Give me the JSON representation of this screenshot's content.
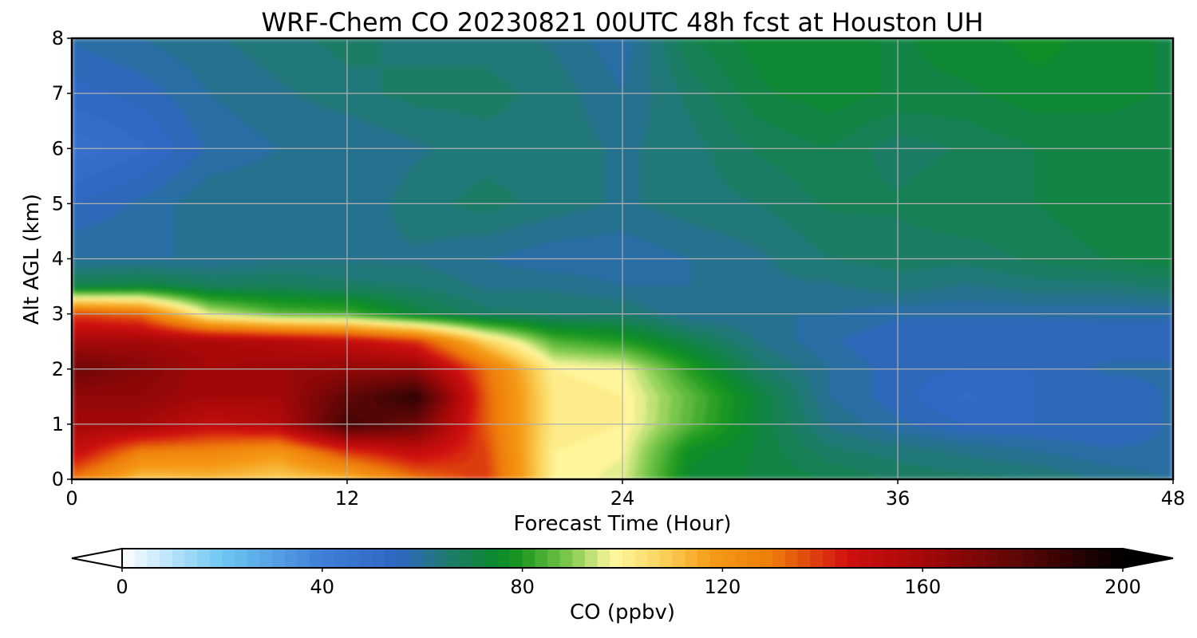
{
  "chart_data": {
    "type": "heatmap",
    "title": "WRF-Chem CO  20230821 00UTC 48h fcst at Houston UH",
    "xlabel": "Forecast Time (Hour)",
    "ylabel": "Alt AGL (km)",
    "xlim": [
      0,
      48
    ],
    "ylim": [
      0,
      8
    ],
    "x_ticks": [
      0,
      12,
      24,
      36,
      48
    ],
    "y_ticks": [
      0,
      1,
      2,
      3,
      4,
      5,
      6,
      7,
      8
    ],
    "grid": true,
    "x": [
      0,
      3,
      6,
      9,
      12,
      15,
      18,
      21,
      24,
      27,
      30,
      33,
      36,
      39,
      42,
      45,
      48
    ],
    "y": [
      0,
      0.5,
      1,
      1.5,
      2,
      2.5,
      3,
      3.5,
      4,
      5,
      6,
      7,
      8
    ],
    "z": [
      [
        130,
        110,
        112,
        108,
        112,
        130,
        140,
        100,
        96,
        74,
        72,
        70,
        67,
        66,
        65,
        62,
        60
      ],
      [
        150,
        128,
        126,
        120,
        140,
        150,
        138,
        100,
        98,
        76,
        72,
        66,
        64,
        62,
        60,
        58,
        58
      ],
      [
        160,
        160,
        150,
        155,
        185,
        175,
        135,
        102,
        100,
        85,
        72,
        62,
        58,
        55,
        55,
        55,
        58
      ],
      [
        165,
        165,
        160,
        160,
        178,
        190,
        135,
        102,
        100,
        86,
        72,
        60,
        56,
        52,
        55,
        55,
        58
      ],
      [
        175,
        168,
        160,
        162,
        165,
        165,
        132,
        100,
        98,
        80,
        66,
        60,
        56,
        55,
        55,
        58,
        58
      ],
      [
        160,
        160,
        158,
        155,
        150,
        140,
        108,
        85,
        80,
        70,
        62,
        58,
        55,
        55,
        55,
        56,
        56
      ],
      [
        138,
        132,
        96,
        86,
        84,
        72,
        66,
        65,
        65,
        60,
        60,
        60,
        58,
        58,
        58,
        58,
        58
      ],
      [
        70,
        72,
        68,
        68,
        66,
        65,
        62,
        62,
        60,
        60,
        62,
        62,
        64,
        62,
        64,
        64,
        66
      ],
      [
        60,
        60,
        60,
        62,
        62,
        62,
        60,
        58,
        58,
        60,
        62,
        65,
        66,
        66,
        68,
        70,
        72
      ],
      [
        55,
        58,
        62,
        62,
        60,
        64,
        66,
        64,
        62,
        64,
        65,
        68,
        68,
        70,
        70,
        72,
        70
      ],
      [
        48,
        52,
        58,
        60,
        60,
        62,
        64,
        64,
        62,
        64,
        68,
        70,
        66,
        68,
        70,
        70,
        70
      ],
      [
        54,
        56,
        60,
        62,
        64,
        66,
        66,
        64,
        60,
        66,
        72,
        74,
        72,
        72,
        74,
        74,
        72
      ],
      [
        58,
        60,
        62,
        64,
        66,
        64,
        64,
        62,
        58,
        70,
        74,
        74,
        72,
        74,
        76,
        74,
        72
      ]
    ],
    "colorbar": {
      "label": "CO  (ppbv)",
      "min": 0,
      "max": 200,
      "ticks": [
        0,
        40,
        80,
        120,
        160,
        200
      ],
      "extend": "both",
      "colors": [
        [
          0,
          "#ffffff"
        ],
        [
          20,
          "#6ec6f2"
        ],
        [
          40,
          "#3f7fd8"
        ],
        [
          55,
          "#2f66c4"
        ],
        [
          65,
          "#1f7a6e"
        ],
        [
          75,
          "#0a8a2c"
        ],
        [
          80,
          "#1e9a1e"
        ],
        [
          90,
          "#86cc52"
        ],
        [
          98,
          "#fff8a0"
        ],
        [
          108,
          "#fad25a"
        ],
        [
          118,
          "#f59a16"
        ],
        [
          130,
          "#ee7c0a"
        ],
        [
          145,
          "#d01010"
        ],
        [
          160,
          "#a50808"
        ],
        [
          180,
          "#5a0606"
        ],
        [
          200,
          "#000000"
        ]
      ]
    }
  }
}
